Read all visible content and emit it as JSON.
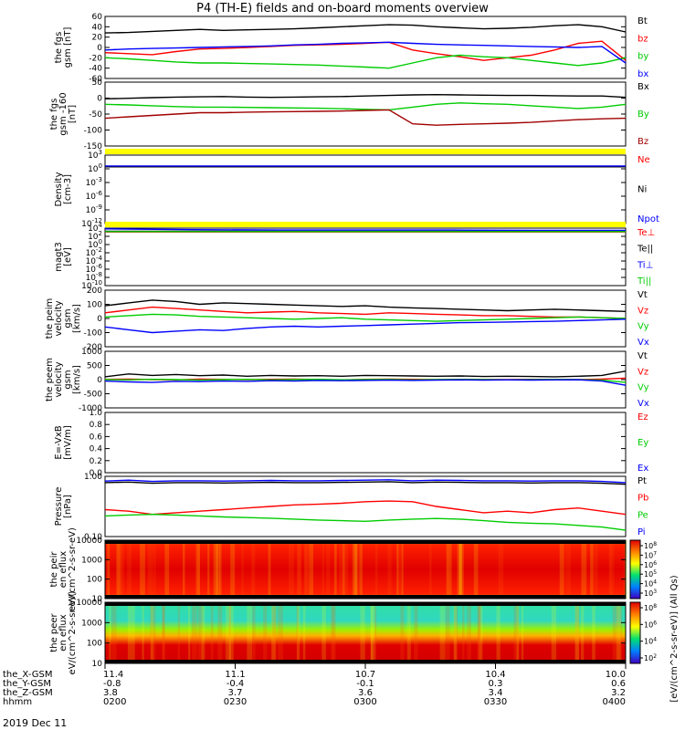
{
  "title": "P4 (TH-E) fields and on-board moments overview",
  "date_label": "2019 Dec 11",
  "colors": {
    "black": "#000000",
    "red": "#ff0000",
    "green": "#00cc00",
    "blue": "#0000ff",
    "darkred": "#a00000",
    "yellow": "#ffff00"
  },
  "chart_data": [
    {
      "type": "line",
      "ylabel": "the fgs gsm [nT]",
      "ytick_labels": [
        "60",
        "40",
        "20",
        "0",
        "-20",
        "-40",
        "-60"
      ],
      "ylim": [
        -60,
        60
      ],
      "series": [
        {
          "name": "Bt",
          "color": "black",
          "values": [
            28,
            29,
            31,
            33,
            35,
            33,
            34,
            35,
            36,
            38,
            40,
            42,
            44,
            43,
            40,
            38,
            36,
            37,
            39,
            42,
            44,
            40,
            30
          ]
        },
        {
          "name": "bz",
          "color": "red",
          "values": [
            -10,
            -12,
            -14,
            -8,
            -3,
            -2,
            0,
            2,
            4,
            5,
            6,
            8,
            10,
            -5,
            -12,
            -18,
            -25,
            -20,
            -15,
            -5,
            8,
            12,
            -25
          ]
        },
        {
          "name": "by",
          "color": "green",
          "values": [
            -20,
            -22,
            -25,
            -28,
            -30,
            -30,
            -31,
            -32,
            -33,
            -34,
            -36,
            -38,
            -40,
            -30,
            -20,
            -15,
            -18,
            -20,
            -25,
            -30,
            -35,
            -30,
            -20
          ]
        },
        {
          "name": "bx",
          "color": "blue",
          "values": [
            -5,
            -3,
            -2,
            -1,
            0,
            1,
            2,
            3,
            5,
            6,
            8,
            9,
            10,
            8,
            6,
            5,
            4,
            3,
            2,
            1,
            0,
            2,
            -30
          ]
        }
      ]
    },
    {
      "type": "line",
      "ylabel": "the fgs gsm -160 [nT]",
      "ytick_labels": [
        "50",
        "0",
        "-50",
        "-100",
        "-150"
      ],
      "ylim": [
        -170,
        60
      ],
      "series": [
        {
          "name": "Bx",
          "color": "black",
          "values": [
            0,
            2,
            4,
            6,
            7,
            8,
            6,
            5,
            6,
            7,
            8,
            10,
            12,
            14,
            15,
            14,
            13,
            12,
            12,
            11,
            10,
            10,
            5
          ]
        },
        {
          "name": "By",
          "color": "green",
          "values": [
            -20,
            -22,
            -25,
            -28,
            -30,
            -30,
            -31,
            -32,
            -33,
            -34,
            -36,
            -38,
            -40,
            -30,
            -20,
            -15,
            -18,
            -20,
            -25,
            -30,
            -35,
            -30,
            -20
          ]
        },
        {
          "name": "Bz",
          "color": "darkred",
          "values": [
            -70,
            -65,
            -60,
            -55,
            -50,
            -50,
            -48,
            -47,
            -46,
            -45,
            -44,
            -42,
            -40,
            -90,
            -95,
            -92,
            -90,
            -88,
            -85,
            -80,
            -75,
            -72,
            -70
          ]
        }
      ]
    },
    {
      "type": "line",
      "ylabel": "Density [cm-3]",
      "scale": "log",
      "ytick_labels": [
        "10^3",
        "10^0",
        "10^-3",
        "10^-6",
        "10^-9",
        "10^-12"
      ],
      "ylim": [
        -14,
        3
      ],
      "series": [
        {
          "name": "Ne",
          "color": "red",
          "values": [
            0.2,
            0.2,
            0.2,
            0.2,
            0.2,
            0.2,
            0.2
          ]
        },
        {
          "name": "Ni",
          "color": "black",
          "values": [
            0.1,
            0.1,
            0.1,
            0.1,
            0.1,
            0.1,
            0.1
          ]
        },
        {
          "name": "Npot",
          "color": "blue",
          "values": [
            0.3,
            0.3,
            0.3,
            0.3,
            0.3,
            0.3,
            0.3
          ]
        }
      ]
    },
    {
      "type": "line",
      "ylabel": "magt3 [eV]",
      "scale": "log",
      "ytick_labels": [
        "10^4",
        "10^2",
        "10^0",
        "10^-2",
        "10^-4",
        "10^-6",
        "10^-8",
        "10^-10"
      ],
      "ylim": [
        -11,
        4
      ],
      "series": [
        {
          "name": "Te⊥",
          "color": "red",
          "values": [
            3.0,
            3.0,
            3.0,
            3.0,
            3.0,
            3.0,
            3.0
          ]
        },
        {
          "name": "Te||",
          "color": "black",
          "values": [
            3.2,
            3.2,
            3.2,
            3.2,
            3.2,
            3.2,
            3.2
          ]
        },
        {
          "name": "Ti⊥",
          "color": "blue",
          "values": [
            3.8,
            3.6,
            3.5,
            3.5,
            3.5,
            3.4,
            3.4
          ]
        },
        {
          "name": "Ti||",
          "color": "green",
          "values": [
            3.1,
            3.1,
            3.1,
            3.1,
            3.1,
            3.1,
            3.1
          ]
        }
      ]
    },
    {
      "type": "line",
      "ylabel": "the peim velocity gsm [km/s]",
      "ytick_labels": [
        "200",
        "100",
        "0",
        "-100",
        "-200"
      ],
      "ylim": [
        -200,
        200
      ],
      "series": [
        {
          "name": "Vt",
          "color": "black",
          "values": [
            90,
            110,
            130,
            120,
            100,
            110,
            105,
            100,
            95,
            90,
            85,
            90,
            80,
            75,
            70,
            65,
            60,
            55,
            60,
            65,
            60,
            55,
            50
          ]
        },
        {
          "name": "Vz",
          "color": "red",
          "values": [
            40,
            60,
            80,
            70,
            60,
            50,
            40,
            45,
            50,
            40,
            35,
            30,
            40,
            35,
            30,
            25,
            20,
            20,
            15,
            10,
            10,
            5,
            0
          ]
        },
        {
          "name": "Vy",
          "color": "green",
          "values": [
            10,
            20,
            30,
            25,
            15,
            10,
            5,
            0,
            -5,
            0,
            5,
            -5,
            -10,
            -15,
            -20,
            -15,
            -10,
            -5,
            0,
            5,
            10,
            5,
            0
          ]
        },
        {
          "name": "Vx",
          "color": "blue",
          "values": [
            -60,
            -80,
            -100,
            -90,
            -80,
            -85,
            -70,
            -60,
            -55,
            -60,
            -55,
            -50,
            -45,
            -40,
            -35,
            -30,
            -28,
            -25,
            -22,
            -20,
            -15,
            -10,
            -5
          ]
        }
      ]
    },
    {
      "type": "line",
      "ylabel": "the peem velocity gsm [km/s]",
      "ytick_labels": [
        "1000",
        "500",
        "0",
        "-500",
        "-1000"
      ],
      "ylim": [
        -1000,
        1000
      ],
      "series": [
        {
          "name": "Vt",
          "color": "black",
          "values": [
            100,
            200,
            150,
            180,
            140,
            160,
            120,
            150,
            130,
            140,
            120,
            150,
            140,
            130,
            120,
            130,
            110,
            120,
            110,
            100,
            120,
            150,
            300
          ]
        },
        {
          "name": "Vz",
          "color": "red",
          "values": [
            10,
            20,
            0,
            -10,
            20,
            10,
            0,
            10,
            20,
            0,
            -10,
            10,
            20,
            10,
            0,
            10,
            5,
            0,
            10,
            5,
            0,
            20,
            50
          ]
        },
        {
          "name": "Vy",
          "color": "green",
          "values": [
            0,
            -10,
            10,
            0,
            -20,
            0,
            10,
            -10,
            0,
            10,
            -5,
            0,
            5,
            -10,
            0,
            5,
            0,
            -5,
            0,
            5,
            0,
            -20,
            -100
          ]
        },
        {
          "name": "Vx",
          "color": "blue",
          "values": [
            -50,
            -80,
            -100,
            -60,
            -70,
            -50,
            -60,
            -40,
            -50,
            -30,
            -40,
            -30,
            -20,
            -30,
            -20,
            -10,
            -20,
            -10,
            -15,
            -10,
            -5,
            -50,
            -200
          ]
        }
      ]
    },
    {
      "type": "line",
      "ylabel": "E=-VxB [mV/m]",
      "ytick_labels": [
        "1.0",
        "0.8",
        "0.6",
        "0.4",
        "0.2",
        "0.0"
      ],
      "ylim": [
        0,
        1
      ],
      "series": [
        {
          "name": "Ez",
          "color": "red",
          "values": []
        },
        {
          "name": "Ey",
          "color": "green",
          "values": []
        },
        {
          "name": "Ex",
          "color": "blue",
          "values": []
        }
      ]
    },
    {
      "type": "line",
      "ylabel": "Pressure [nPa]",
      "scale": "log",
      "ytick_labels": [
        "1.00",
        "0.10"
      ],
      "ylim": [
        -1.4,
        0.5
      ],
      "series": [
        {
          "name": "Pt",
          "color": "black",
          "values": [
            0.3,
            0.32,
            0.28,
            0.3,
            0.3,
            0.29,
            0.3,
            0.31,
            0.3,
            0.3,
            0.31,
            0.32,
            0.33,
            0.3,
            0.32,
            0.31,
            0.3,
            0.3,
            0.29,
            0.3,
            0.3,
            0.28,
            0.25
          ]
        },
        {
          "name": "Pb",
          "color": "red",
          "values": [
            -0.55,
            -0.6,
            -0.7,
            -0.65,
            -0.6,
            -0.55,
            -0.5,
            -0.45,
            -0.4,
            -0.38,
            -0.35,
            -0.3,
            -0.28,
            -0.3,
            -0.45,
            -0.55,
            -0.65,
            -0.6,
            -0.65,
            -0.55,
            -0.5,
            -0.6,
            -0.7
          ]
        },
        {
          "name": "Pe",
          "color": "green",
          "values": [
            -0.75,
            -0.72,
            -0.7,
            -0.72,
            -0.75,
            -0.78,
            -0.8,
            -0.82,
            -0.85,
            -0.88,
            -0.9,
            -0.92,
            -0.88,
            -0.85,
            -0.83,
            -0.85,
            -0.9,
            -0.95,
            -0.98,
            -1.0,
            -1.05,
            -1.1,
            -1.2
          ]
        },
        {
          "name": "Pi",
          "color": "blue",
          "values": [
            0.35,
            0.38,
            0.34,
            0.36,
            0.36,
            0.35,
            0.36,
            0.37,
            0.36,
            0.36,
            0.37,
            0.38,
            0.39,
            0.36,
            0.38,
            0.37,
            0.36,
            0.36,
            0.35,
            0.36,
            0.36,
            0.34,
            0.3
          ]
        }
      ]
    },
    {
      "type": "heatmap",
      "ylabel": "the peir en eflux eV/(cm^2-s-sr-eV)",
      "ytick_labels": [
        "10000",
        "1000",
        "100",
        "10"
      ],
      "colorbar_ticks": [
        "10^8",
        "10^7",
        "10^6",
        "10^5",
        "10^4",
        "10^3"
      ],
      "colorbar_label": "[eV/(cm^2-s-sr-eV)] (All Qs)"
    },
    {
      "type": "heatmap",
      "ylabel": "the peer en eflux eV/(cm^2-s-sr-eV)",
      "ytick_labels": [
        "10000",
        "1000",
        "100",
        "10"
      ],
      "colorbar_ticks": [
        "10^8",
        "10^6",
        "10^4",
        "10^2"
      ],
      "colorbar_label": "[eV/(cm^2-s-sr-eV)] (All Qs)"
    }
  ],
  "x_axis": {
    "row_labels": [
      "the_X-GSM",
      "the_Y-GSM",
      "the_Z-GSM",
      "hhmm"
    ],
    "ticks": [
      {
        "x_gsm": "11.4",
        "y_gsm": "-0.8",
        "z_gsm": "3.8",
        "hhmm": "0200"
      },
      {
        "x_gsm": "11.1",
        "y_gsm": "-0.4",
        "z_gsm": "3.7",
        "hhmm": "0230"
      },
      {
        "x_gsm": "10.7",
        "y_gsm": "-0.1",
        "z_gsm": "3.6",
        "hhmm": "0300"
      },
      {
        "x_gsm": "10.4",
        "y_gsm": "0.3",
        "z_gsm": "3.4",
        "hhmm": "0330"
      },
      {
        "x_gsm": "10.0",
        "y_gsm": "0.6",
        "z_gsm": "3.2",
        "hhmm": "0400"
      }
    ]
  }
}
